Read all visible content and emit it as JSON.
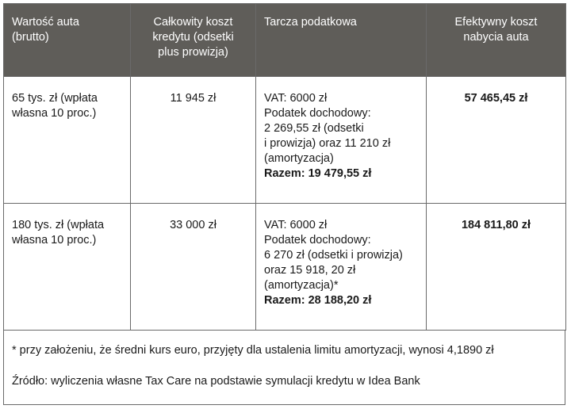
{
  "table": {
    "headers": [
      [
        "Wartość auta",
        "(brutto)"
      ],
      [
        "Całkowity koszt",
        "kredytu (odsetki",
        "plus prowizja)"
      ],
      [
        "Tarcza podatkowa"
      ],
      [
        "Efektywny koszt",
        "nabycia auta"
      ]
    ],
    "rows": [
      {
        "value": [
          "65 tys. zł (wpłata",
          "własna 10 proc.)"
        ],
        "credit_cost": "11 945 zł",
        "tax_shield": [
          "VAT: 6000 zł",
          "Podatek dochodowy:",
          "2 269,55 zł (odsetki",
          "i prowizja) oraz 11 210 zł",
          "(amortyzacja)"
        ],
        "tax_shield_total": "Razem: 19 479,55 zł",
        "effective_cost": "57 465,45 zł"
      },
      {
        "value": [
          "180 tys. zł (wpłata",
          "własna 10 proc.)"
        ],
        "credit_cost": "33 000 zł",
        "tax_shield": [
          "VAT: 6000 zł",
          "Podatek dochodowy:",
          "6 270 zł (odsetki i prowizja)",
          "oraz 15 918, 20 zł",
          "(amortyzacja)*"
        ],
        "tax_shield_total": "Razem: 28 188,20 zł",
        "effective_cost": "184 811,80 zł"
      }
    ]
  },
  "footer": {
    "note": "* przy założeniu, że średni kurs euro, przyjęty dla ustalenia limitu amortyzacji, wynosi 4,1890 zł",
    "source": "Źródło: wyliczenia własne Tax Care na podstawie symulacji kredytu w Idea Bank"
  }
}
